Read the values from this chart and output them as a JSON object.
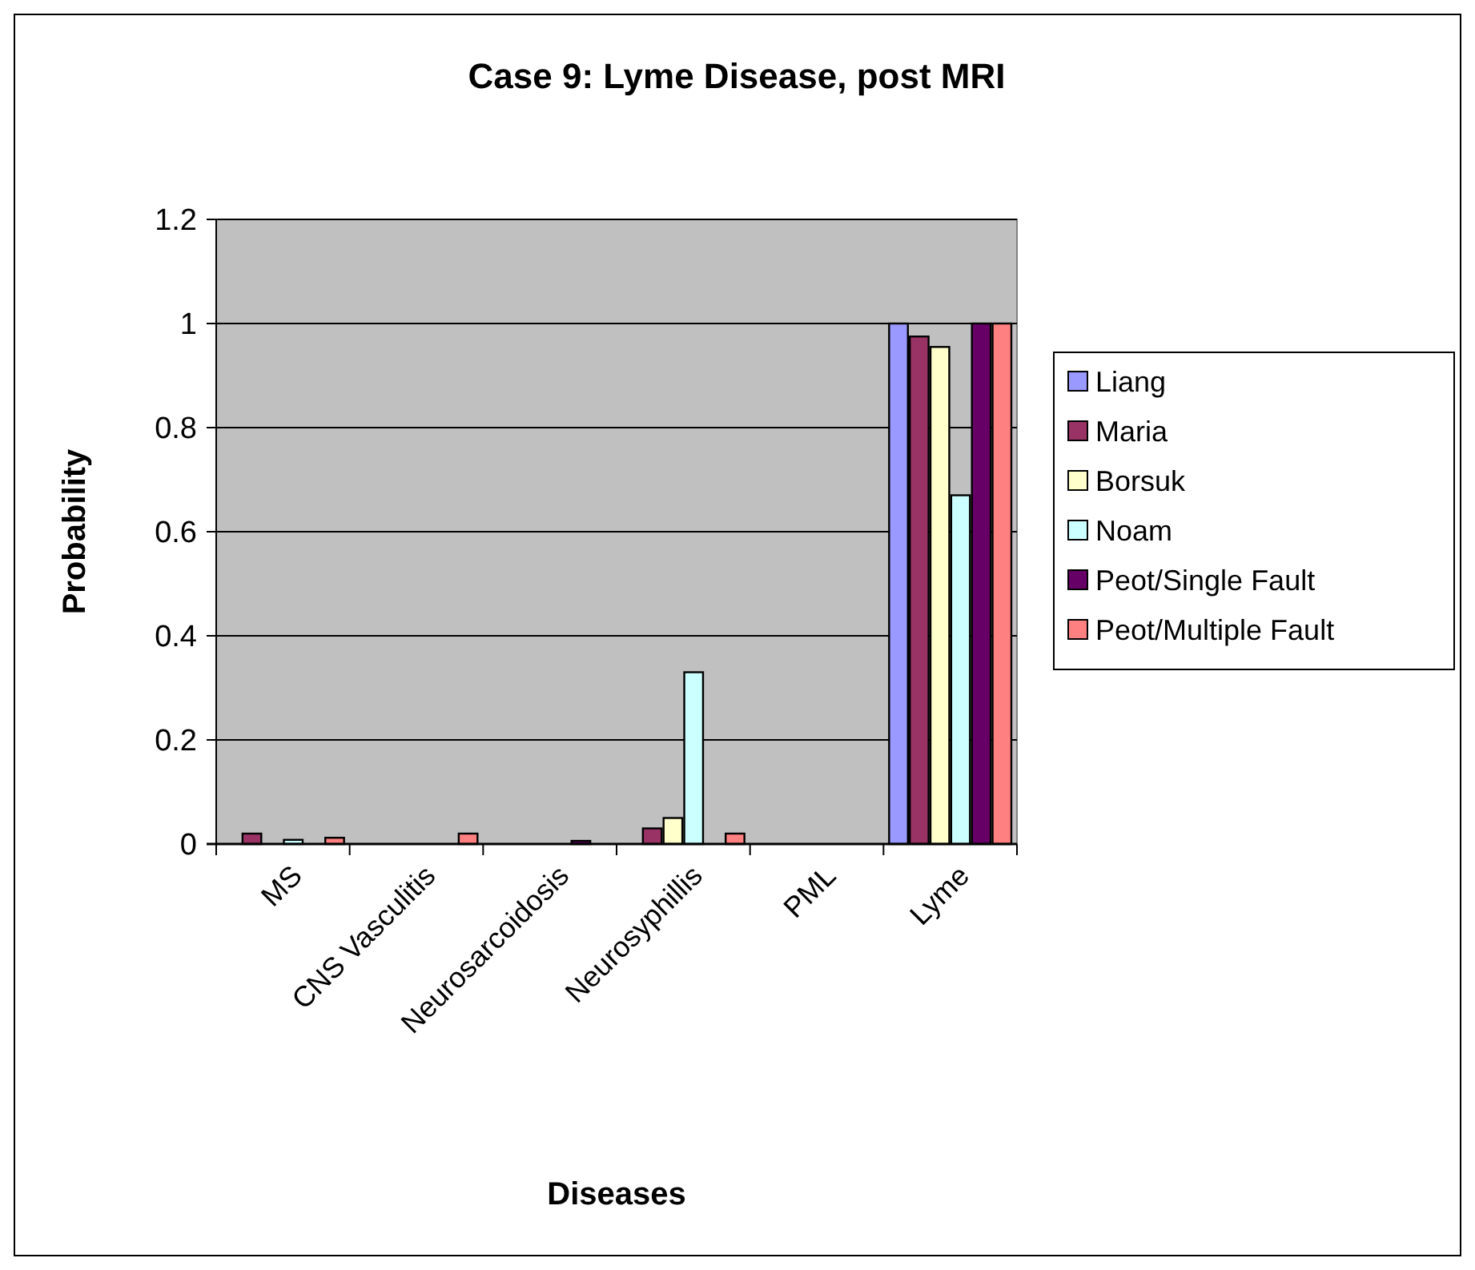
{
  "chart_data": {
    "type": "bar",
    "title": "Case 9: Lyme Disease, post MRI",
    "xlabel": "Diseases",
    "ylabel": "Probability",
    "categories": [
      "MS",
      "CNS Vasculitis",
      "Neurosarcoidosis",
      "Neurosyphillis",
      "PML",
      "Lyme"
    ],
    "series": [
      {
        "name": "Liang",
        "color": "#9999ff",
        "values": [
          0,
          0,
          0,
          0,
          0,
          1
        ]
      },
      {
        "name": "Maria",
        "color": "#993366",
        "values": [
          0.02,
          0,
          0,
          0.03,
          0,
          0.975
        ]
      },
      {
        "name": "Borsuk",
        "color": "#ffffcc",
        "values": [
          0,
          0,
          0,
          0.05,
          0,
          0.955
        ]
      },
      {
        "name": "Noam",
        "color": "#ccffff",
        "values": [
          0.008,
          0,
          0,
          0.33,
          0,
          0.67
        ]
      },
      {
        "name": "Peot/Single Fault",
        "color": "#660066",
        "values": [
          0,
          0,
          0.006,
          0,
          0,
          1
        ]
      },
      {
        "name": "Peot/Multiple Fault",
        "color": "#ff8080",
        "values": [
          0.012,
          0.02,
          0,
          0.02,
          0,
          1
        ]
      }
    ],
    "ylim": [
      0,
      1.2
    ],
    "yticks": [
      0,
      0.2,
      0.4,
      0.6,
      0.8,
      1,
      1.2
    ],
    "grid": "y",
    "legend": "right"
  }
}
